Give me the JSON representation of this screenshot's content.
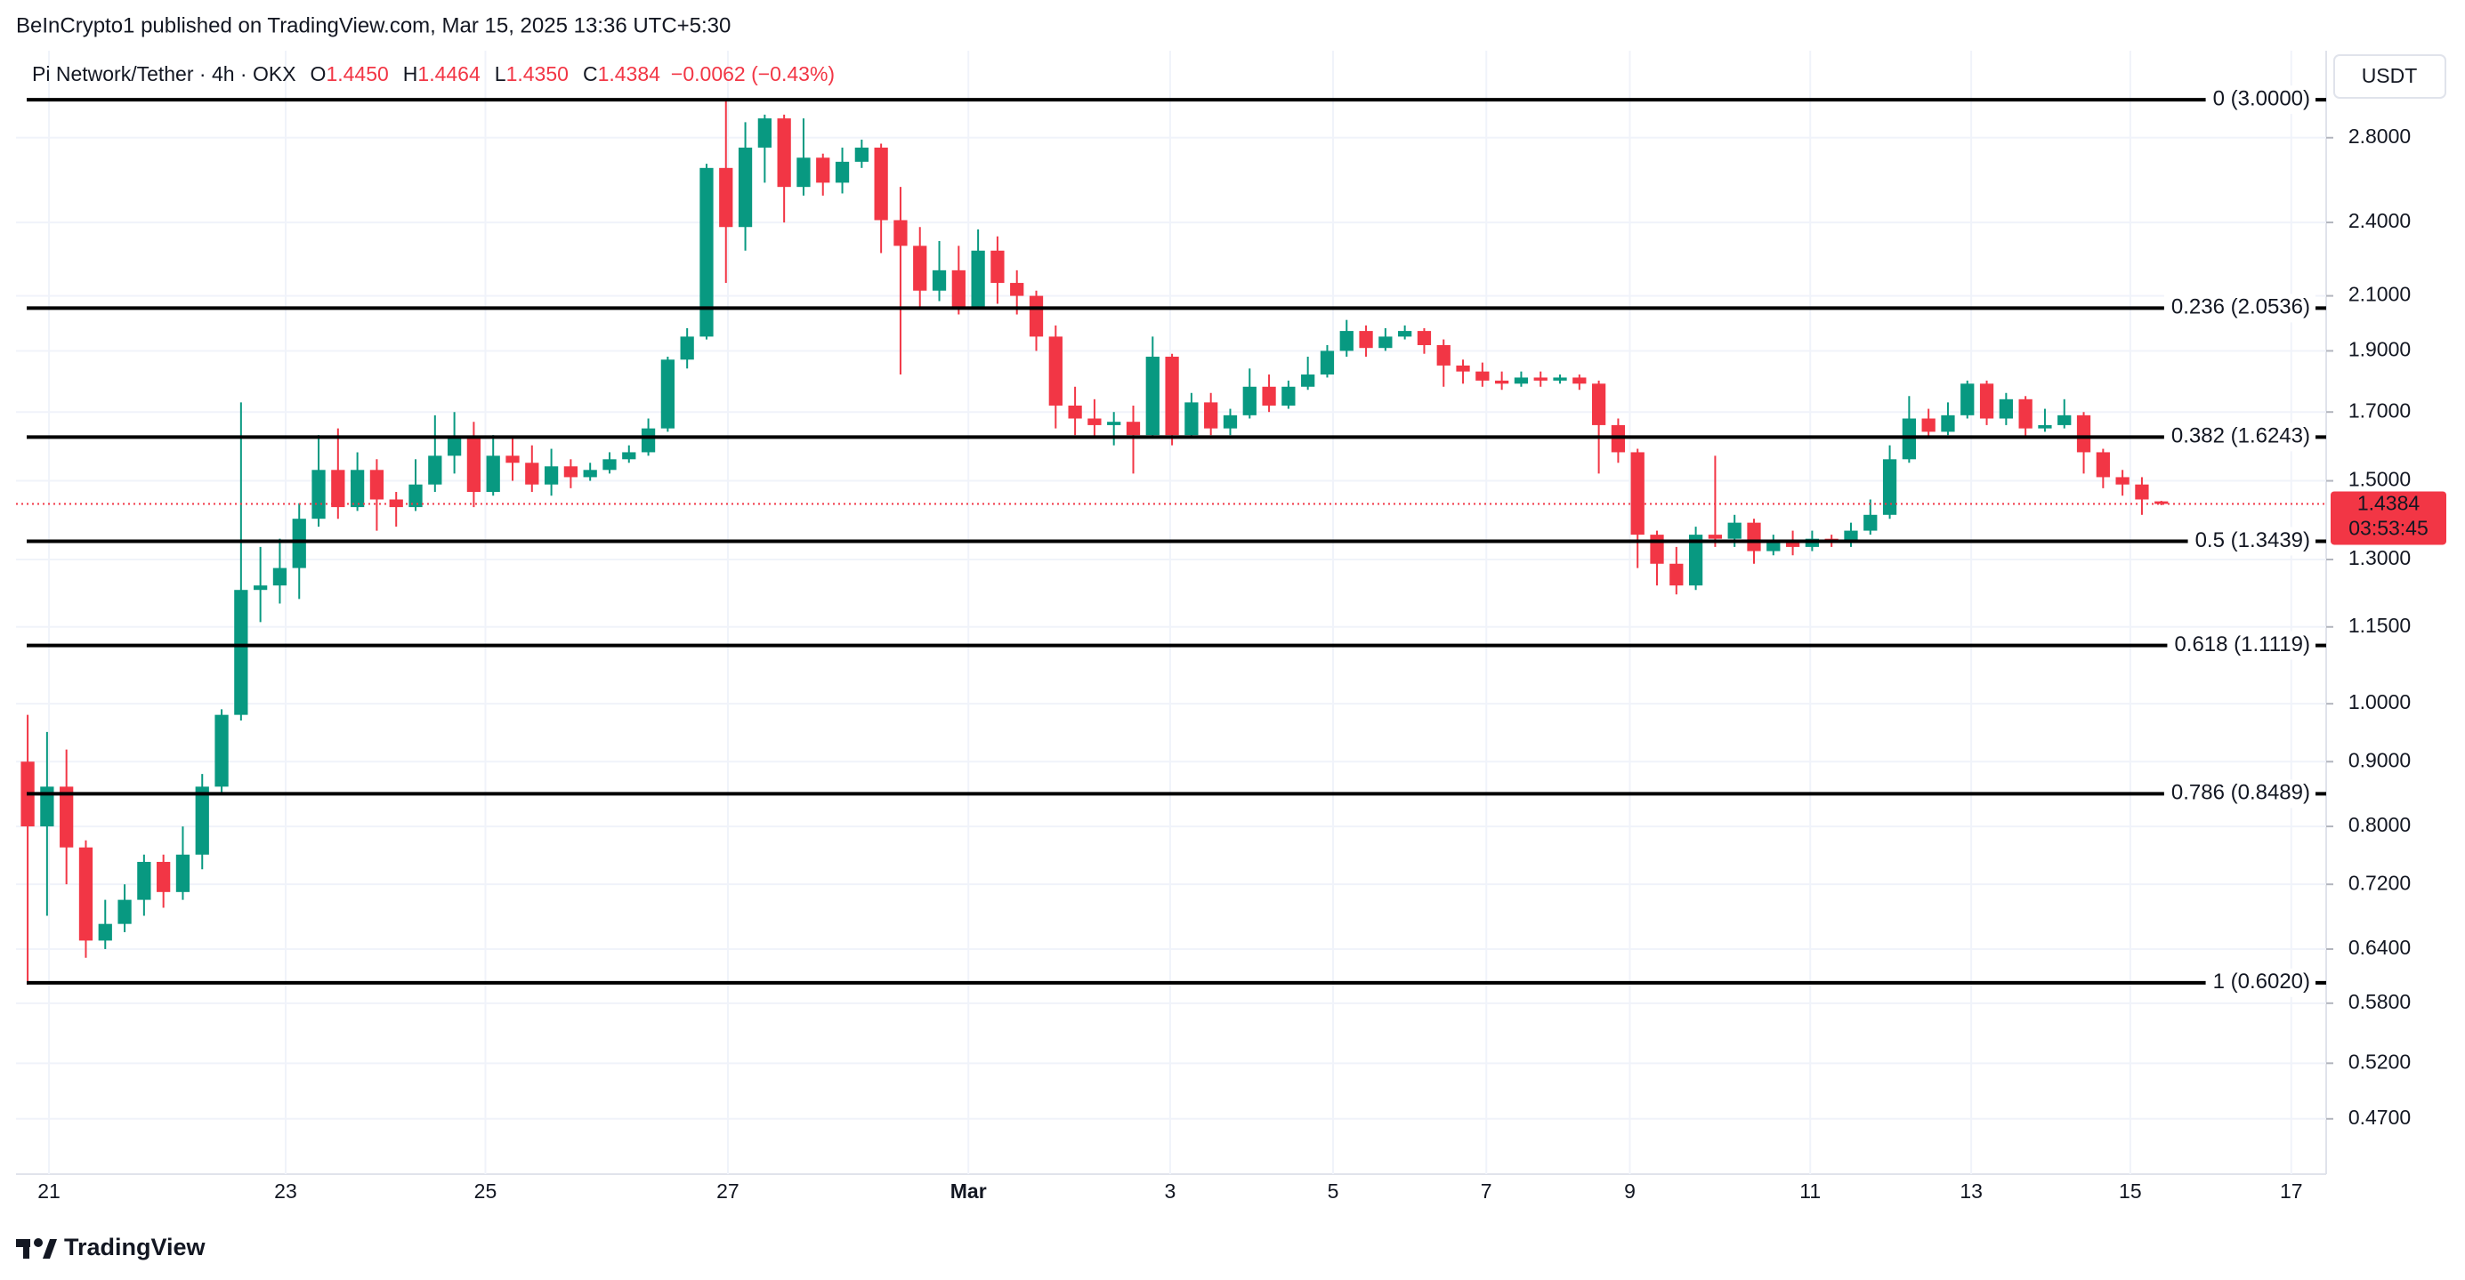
{
  "header": {
    "published": "BeInCrypto1 published on TradingView.com, Mar 15, 2025 13:36 UTC+5:30"
  },
  "footer": {
    "brand": "TradingView"
  },
  "chart_data": {
    "type": "candlestick",
    "legend": {
      "symbol": "Pi Network/Tether · 4h · OKX",
      "fields": [
        {
          "key": "O",
          "label": "1.4450"
        },
        {
          "key": "H",
          "label": "1.4464"
        },
        {
          "key": "L",
          "label": "1.4350"
        },
        {
          "key": "C",
          "label": "1.4384"
        }
      ],
      "change": "−0.0062 (−0.43%)"
    },
    "currency": "USDT",
    "up_color": "#089981",
    "down_color": "#f23645",
    "log_scale": true,
    "grid": true,
    "ylim": [
      0.425,
      3.28
    ],
    "yticks": [
      {
        "value": 0.47,
        "label": "0.4700"
      },
      {
        "value": 0.52,
        "label": "0.5200"
      },
      {
        "value": 0.58,
        "label": "0.5800"
      },
      {
        "value": 0.64,
        "label": "0.6400"
      },
      {
        "value": 0.72,
        "label": "0.7200"
      },
      {
        "value": 0.8,
        "label": "0.8000"
      },
      {
        "value": 0.9,
        "label": "0.9000"
      },
      {
        "value": 1.0,
        "label": "1.0000"
      },
      {
        "value": 1.15,
        "label": "1.1500"
      },
      {
        "value": 1.3,
        "label": "1.3000"
      },
      {
        "value": 1.5,
        "label": "1.5000"
      },
      {
        "value": 1.7,
        "label": "1.7000"
      },
      {
        "value": 1.9,
        "label": "1.9000"
      },
      {
        "value": 2.1,
        "label": "2.1000"
      },
      {
        "value": 2.4,
        "label": "2.4000"
      },
      {
        "value": 2.8,
        "label": "2.8000"
      }
    ],
    "xlim": [
      -0.6,
      118.5
    ],
    "xticks": [
      {
        "value": 1.1,
        "label": "21"
      },
      {
        "value": 13.3,
        "label": "23"
      },
      {
        "value": 23.6,
        "label": "25"
      },
      {
        "value": 36.1,
        "label": "27"
      },
      {
        "value": 48.5,
        "label": "Mar"
      },
      {
        "value": 58.9,
        "label": "3"
      },
      {
        "value": 67.3,
        "label": "5"
      },
      {
        "value": 75.2,
        "label": "7"
      },
      {
        "value": 82.6,
        "label": "9"
      },
      {
        "value": 91.9,
        "label": "11"
      },
      {
        "value": 100.2,
        "label": "13"
      },
      {
        "value": 108.4,
        "label": "15"
      },
      {
        "value": 116.7,
        "label": "17"
      }
    ],
    "levels": [
      {
        "value": 3.0,
        "label": "0 (3.0000)"
      },
      {
        "value": 2.0536,
        "label": "0.236 (2.0536)"
      },
      {
        "value": 1.6243,
        "label": "0.382 (1.6243)"
      },
      {
        "value": 1.3439,
        "label": "0.5 (1.3439)"
      },
      {
        "value": 1.1119,
        "label": "0.618 (1.1119)"
      },
      {
        "value": 0.8489,
        "label": "0.786 (0.8489)"
      },
      {
        "value": 0.602,
        "label": "1 (0.6020)"
      }
    ],
    "last_price": {
      "value": 1.4384,
      "label": "1.4384"
    },
    "countdown": "03:53:45",
    "open": [
      0.9,
      0.8,
      0.86,
      0.77,
      0.65,
      0.67,
      0.7,
      0.75,
      0.71,
      0.76,
      0.86,
      0.98,
      1.23,
      1.24,
      1.28,
      1.4,
      1.53,
      1.43,
      1.53,
      1.45,
      1.43,
      1.49,
      1.57,
      1.62,
      1.47,
      1.57,
      1.55,
      1.49,
      1.54,
      1.51,
      1.53,
      1.56,
      1.58,
      1.65,
      1.87,
      1.95,
      2.65,
      2.38,
      2.75,
      2.9,
      2.56,
      2.7,
      2.58,
      2.68,
      2.75,
      2.41,
      2.3,
      2.12,
      2.2,
      2.06,
      2.28,
      2.15,
      2.1,
      1.95,
      1.72,
      1.68,
      1.66,
      1.67,
      1.63,
      1.88,
      1.63,
      1.73,
      1.65,
      1.69,
      1.78,
      1.72,
      1.78,
      1.82,
      1.9,
      1.97,
      1.91,
      1.95,
      1.97,
      1.92,
      1.85,
      1.83,
      1.8,
      1.79,
      1.81,
      1.8,
      1.81,
      1.79,
      1.66,
      1.58,
      1.36,
      1.29,
      1.24,
      1.36,
      1.35,
      1.39,
      1.32,
      1.34,
      1.33,
      1.35,
      1.34,
      1.37,
      1.41,
      1.56,
      1.68,
      1.64,
      1.69,
      1.79,
      1.68,
      1.74,
      1.65,
      1.66,
      1.69,
      1.58,
      1.51,
      1.49,
      1.445
    ],
    "high": [
      0.98,
      0.95,
      0.92,
      0.78,
      0.7,
      0.72,
      0.76,
      0.76,
      0.8,
      0.88,
      0.99,
      1.73,
      1.33,
      1.35,
      1.44,
      1.63,
      1.65,
      1.58,
      1.56,
      1.47,
      1.56,
      1.69,
      1.7,
      1.67,
      1.63,
      1.62,
      1.6,
      1.59,
      1.56,
      1.55,
      1.58,
      1.6,
      1.68,
      1.88,
      1.98,
      2.67,
      3.0,
      2.88,
      2.92,
      2.92,
      2.9,
      2.72,
      2.75,
      2.79,
      2.77,
      2.56,
      2.38,
      2.32,
      2.3,
      2.37,
      2.34,
      2.2,
      2.12,
      1.99,
      1.78,
      1.74,
      1.7,
      1.72,
      1.95,
      1.89,
      1.76,
      1.76,
      1.71,
      1.84,
      1.82,
      1.8,
      1.88,
      1.92,
      2.01,
      1.99,
      1.98,
      1.99,
      1.98,
      1.94,
      1.87,
      1.86,
      1.83,
      1.83,
      1.83,
      1.82,
      1.82,
      1.8,
      1.68,
      1.59,
      1.37,
      1.33,
      1.38,
      1.57,
      1.41,
      1.4,
      1.36,
      1.37,
      1.37,
      1.36,
      1.39,
      1.45,
      1.6,
      1.75,
      1.71,
      1.73,
      1.8,
      1.8,
      1.76,
      1.75,
      1.71,
      1.74,
      1.7,
      1.59,
      1.53,
      1.51,
      1.4464
    ],
    "low": [
      0.6,
      0.68,
      0.72,
      0.63,
      0.64,
      0.66,
      0.68,
      0.69,
      0.7,
      0.74,
      0.85,
      0.97,
      1.16,
      1.2,
      1.21,
      1.38,
      1.4,
      1.42,
      1.37,
      1.38,
      1.42,
      1.47,
      1.52,
      1.43,
      1.46,
      1.5,
      1.47,
      1.46,
      1.48,
      1.5,
      1.52,
      1.55,
      1.57,
      1.64,
      1.84,
      1.94,
      2.15,
      2.28,
      2.58,
      2.4,
      2.52,
      2.52,
      2.53,
      2.65,
      2.27,
      1.82,
      2.05,
      2.08,
      2.03,
      2.05,
      2.07,
      2.03,
      1.9,
      1.65,
      1.63,
      1.62,
      1.6,
      1.52,
      1.62,
      1.6,
      1.62,
      1.63,
      1.63,
      1.68,
      1.7,
      1.71,
      1.77,
      1.81,
      1.88,
      1.88,
      1.9,
      1.94,
      1.89,
      1.78,
      1.79,
      1.78,
      1.77,
      1.78,
      1.78,
      1.79,
      1.77,
      1.52,
      1.55,
      1.28,
      1.24,
      1.22,
      1.23,
      1.33,
      1.33,
      1.29,
      1.31,
      1.31,
      1.32,
      1.33,
      1.33,
      1.36,
      1.4,
      1.55,
      1.62,
      1.63,
      1.68,
      1.66,
      1.66,
      1.62,
      1.64,
      1.65,
      1.52,
      1.48,
      1.46,
      1.41,
      1.435
    ],
    "close": [
      0.8,
      0.86,
      0.77,
      0.65,
      0.67,
      0.7,
      0.75,
      0.71,
      0.76,
      0.86,
      0.98,
      1.23,
      1.24,
      1.28,
      1.4,
      1.53,
      1.43,
      1.53,
      1.45,
      1.43,
      1.49,
      1.57,
      1.62,
      1.47,
      1.57,
      1.55,
      1.49,
      1.54,
      1.51,
      1.53,
      1.56,
      1.58,
      1.65,
      1.87,
      1.95,
      2.65,
      2.38,
      2.75,
      2.9,
      2.56,
      2.7,
      2.58,
      2.68,
      2.75,
      2.41,
      2.3,
      2.12,
      2.2,
      2.06,
      2.28,
      2.15,
      2.1,
      1.95,
      1.72,
      1.68,
      1.66,
      1.67,
      1.63,
      1.88,
      1.63,
      1.73,
      1.65,
      1.69,
      1.78,
      1.72,
      1.78,
      1.82,
      1.9,
      1.97,
      1.91,
      1.95,
      1.97,
      1.92,
      1.85,
      1.83,
      1.8,
      1.79,
      1.81,
      1.8,
      1.81,
      1.79,
      1.66,
      1.58,
      1.36,
      1.29,
      1.24,
      1.36,
      1.35,
      1.39,
      1.32,
      1.34,
      1.33,
      1.35,
      1.34,
      1.37,
      1.41,
      1.56,
      1.68,
      1.64,
      1.69,
      1.79,
      1.68,
      1.74,
      1.65,
      1.66,
      1.69,
      1.58,
      1.51,
      1.49,
      1.45,
      1.4384
    ]
  }
}
